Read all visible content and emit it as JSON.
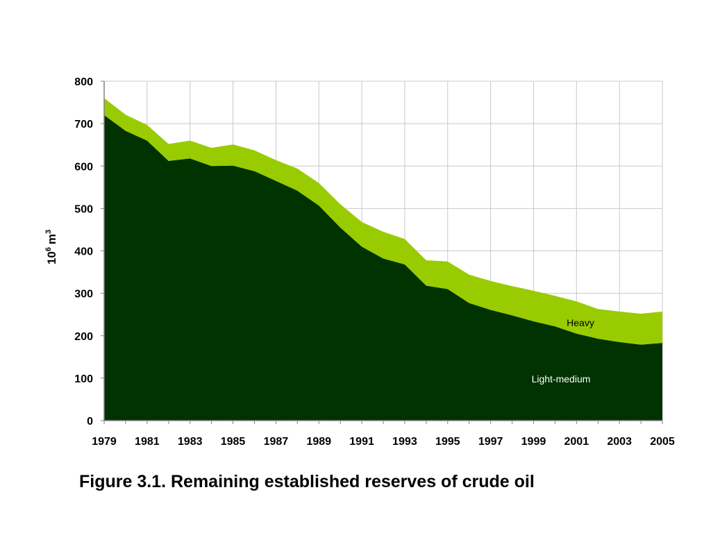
{
  "caption": "Figure 3.1. Remaining established reserves of crude oil",
  "colors": {
    "light_medium": "#003300",
    "heavy": "#99cc00",
    "grid": "#c8c8c8",
    "axis": "#808080"
  },
  "chart_data": {
    "type": "area",
    "stacked": true,
    "title": "",
    "xlabel": "",
    "ylabel": "10⁶ m³",
    "ylabel_parts": {
      "base": "10",
      "exp": "6",
      "unit": "m",
      "unit_exp": "3"
    },
    "ylim": [
      0,
      800
    ],
    "yticks": [
      0,
      100,
      200,
      300,
      400,
      500,
      600,
      700,
      800
    ],
    "xlim": [
      1979,
      2005
    ],
    "xticks": [
      1979,
      1981,
      1983,
      1985,
      1987,
      1989,
      1991,
      1993,
      1995,
      1997,
      1999,
      2001,
      2003,
      2005
    ],
    "grid": true,
    "x": [
      1979,
      1980,
      1981,
      1982,
      1983,
      1984,
      1985,
      1986,
      1987,
      1988,
      1989,
      1990,
      1991,
      1992,
      1993,
      1994,
      1995,
      1996,
      1997,
      1998,
      1999,
      2000,
      2001,
      2002,
      2003,
      2004,
      2005
    ],
    "series": [
      {
        "name": "Light-medium",
        "color": "#003300",
        "values": [
          720,
          683,
          660,
          612,
          618,
          600,
          601,
          588,
          565,
          542,
          507,
          455,
          410,
          382,
          368,
          318,
          310,
          277,
          261,
          248,
          234,
          222,
          205,
          193,
          185,
          179,
          183
        ]
      },
      {
        "name": "Heavy",
        "color": "#99cc00",
        "values": [
          40,
          38,
          37,
          40,
          42,
          43,
          50,
          49,
          49,
          52,
          53,
          55,
          58,
          63,
          60,
          60,
          65,
          67,
          68,
          69,
          72,
          72,
          76,
          70,
          72,
          73,
          74
        ]
      }
    ]
  }
}
